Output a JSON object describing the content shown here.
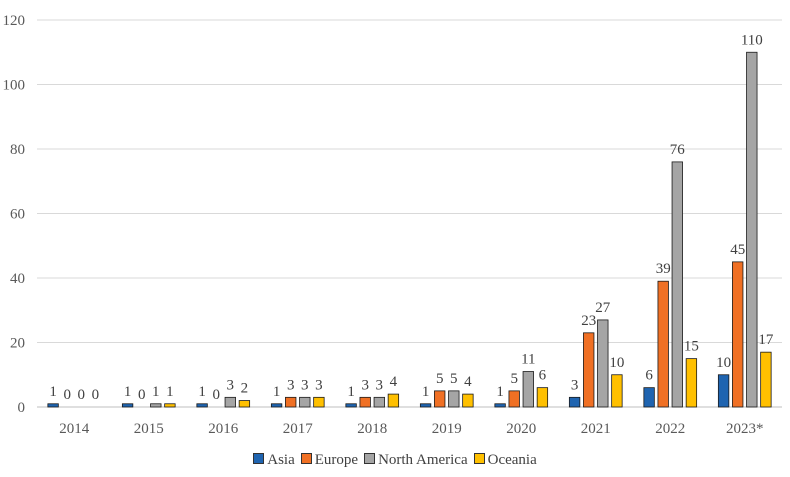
{
  "chart_data": {
    "type": "bar",
    "title": "",
    "xlabel": "",
    "ylabel": "",
    "ylim": [
      0,
      120
    ],
    "yticks": [
      0,
      20,
      40,
      60,
      80,
      100,
      120
    ],
    "grid": true,
    "legend_position": "bottom",
    "categories": [
      "2014",
      "2015",
      "2016",
      "2017",
      "2018",
      "2019",
      "2020",
      "2021",
      "2022",
      "2023*"
    ],
    "series": [
      {
        "name": "Asia",
        "color": "#1F64B0",
        "values": [
          1,
          1,
          1,
          1,
          1,
          1,
          1,
          3,
          6,
          10
        ]
      },
      {
        "name": "Europe",
        "color": "#F07024",
        "values": [
          0,
          0,
          0,
          3,
          3,
          5,
          5,
          23,
          39,
          45
        ]
      },
      {
        "name": "North America",
        "color": "#A5A5A5",
        "values": [
          0,
          1,
          3,
          3,
          3,
          5,
          11,
          27,
          76,
          110
        ]
      },
      {
        "name": "Oceania",
        "color": "#FFC000",
        "values": [
          0,
          1,
          2,
          3,
          4,
          4,
          6,
          10,
          15,
          17
        ]
      }
    ]
  }
}
